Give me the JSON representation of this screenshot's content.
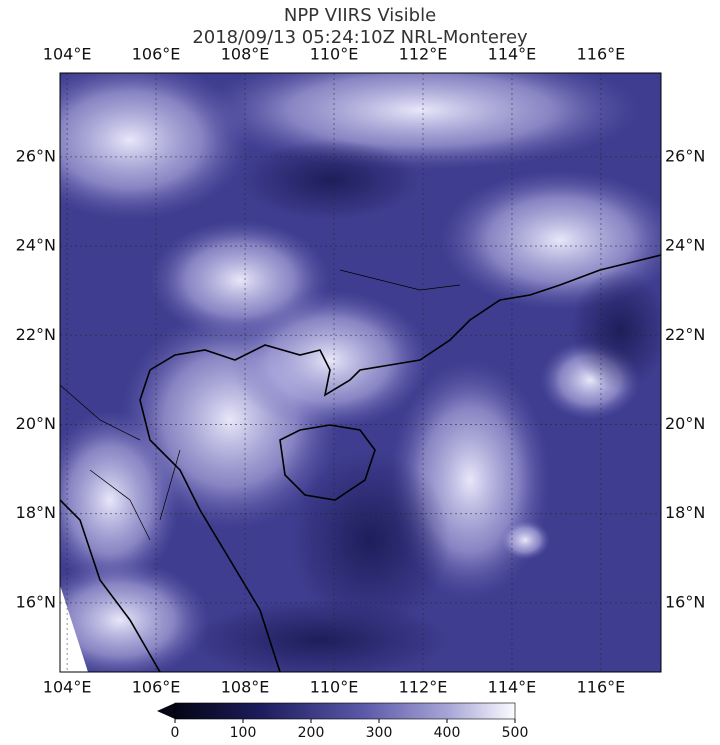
{
  "map": {
    "title": "NPP VIIRS Visible",
    "subtitle": "2018/09/13 05:24:10Z NRL-Monterey",
    "xlim": [
      103.84,
      117.35
    ],
    "ylim": [
      14.45,
      27.88
    ],
    "xticks": [
      {
        "value": 104,
        "label": "104°E"
      },
      {
        "value": 106,
        "label": "106°E"
      },
      {
        "value": 108,
        "label": "108°E"
      },
      {
        "value": 110,
        "label": "110°E"
      },
      {
        "value": 112,
        "label": "112°E"
      },
      {
        "value": 114,
        "label": "114°E"
      },
      {
        "value": 116,
        "label": "116°E"
      }
    ],
    "yticks": [
      {
        "value": 16,
        "label": "16°N"
      },
      {
        "value": 18,
        "label": "18°N"
      },
      {
        "value": 20,
        "label": "20°N"
      },
      {
        "value": 22,
        "label": "22°N"
      },
      {
        "value": 24,
        "label": "24°N"
      },
      {
        "value": 26,
        "label": "26°N"
      }
    ],
    "colorbar": {
      "lim": [
        0,
        500
      ],
      "ticks": [
        0,
        100,
        200,
        300,
        400,
        500
      ]
    }
  }
}
